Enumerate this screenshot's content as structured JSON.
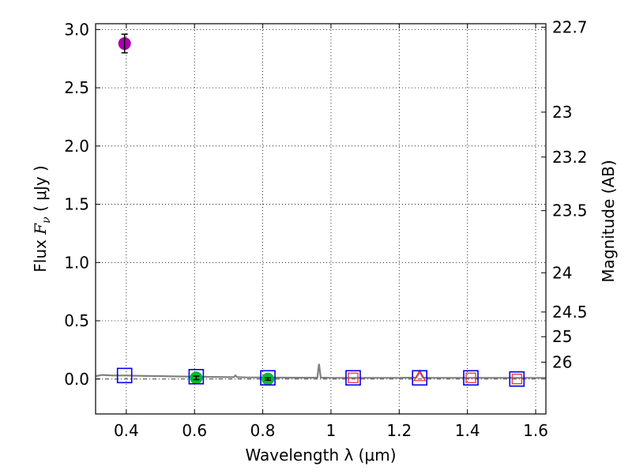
{
  "chart_data": {
    "type": "scatter",
    "xlabel": "Wavelength  λ (μm)",
    "ylabel_left_prefix": "Flux  ",
    "ylabel_left_var": "F",
    "ylabel_left_sub": "ν",
    "ylabel_left_suffix": "  ( μJy )",
    "ylabel_right": "Magnitude (AB)",
    "xlim": [
      0.31,
      1.63
    ],
    "ylim": [
      -0.3,
      3.05
    ],
    "x_ticks": [
      {
        "value": 0.4,
        "label": "0.4"
      },
      {
        "value": 0.6,
        "label": "0.6"
      },
      {
        "value": 0.8,
        "label": "0.8"
      },
      {
        "value": 1.0,
        "label": "1"
      },
      {
        "value": 1.2,
        "label": "1.2"
      },
      {
        "value": 1.4,
        "label": "1.4"
      },
      {
        "value": 1.6,
        "label": "1.6"
      }
    ],
    "y_ticks": [
      {
        "value": 0.0,
        "label": "0.0"
      },
      {
        "value": 0.5,
        "label": "0.5"
      },
      {
        "value": 1.0,
        "label": "1.0"
      },
      {
        "value": 1.5,
        "label": "1.5"
      },
      {
        "value": 2.0,
        "label": "2.0"
      },
      {
        "value": 2.5,
        "label": "2.5"
      },
      {
        "value": 3.0,
        "label": "3.0"
      }
    ],
    "right_ticks": [
      {
        "mag": 22.7,
        "label": "22.7"
      },
      {
        "mag": 23,
        "label": "23"
      },
      {
        "mag": 23.2,
        "label": "23.2"
      },
      {
        "mag": 23.5,
        "label": "23.5"
      },
      {
        "mag": 24,
        "label": "24"
      },
      {
        "mag": 24.5,
        "label": "24.5"
      },
      {
        "mag": 25,
        "label": "25"
      },
      {
        "mag": 26,
        "label": "26"
      }
    ],
    "grid": true,
    "model_spectrum": {
      "color": "#808080",
      "points": [
        [
          0.31,
          0.025
        ],
        [
          0.33,
          0.035
        ],
        [
          0.36,
          0.03
        ],
        [
          0.4,
          0.03
        ],
        [
          0.45,
          0.027
        ],
        [
          0.5,
          0.025
        ],
        [
          0.55,
          0.022
        ],
        [
          0.6,
          0.02
        ],
        [
          0.65,
          0.018
        ],
        [
          0.7,
          0.016
        ],
        [
          0.715,
          0.016
        ],
        [
          0.72,
          0.03
        ],
        [
          0.725,
          0.016
        ],
        [
          0.75,
          0.014
        ],
        [
          0.8,
          0.013
        ],
        [
          0.85,
          0.012
        ],
        [
          0.9,
          0.011
        ],
        [
          0.95,
          0.011
        ],
        [
          0.96,
          0.012
        ],
        [
          0.965,
          0.13
        ],
        [
          0.97,
          0.012
        ],
        [
          1.0,
          0.01
        ],
        [
          1.1,
          0.01
        ],
        [
          1.2,
          0.01
        ],
        [
          1.25,
          0.012
        ],
        [
          1.26,
          0.06
        ],
        [
          1.27,
          0.012
        ],
        [
          1.3,
          0.01
        ],
        [
          1.4,
          0.01
        ],
        [
          1.5,
          0.01
        ],
        [
          1.63,
          0.01
        ]
      ]
    },
    "zero_line_color": "#444444",
    "model_photometry": {
      "color": "#0000ee",
      "x": [
        0.395,
        0.605,
        0.815,
        1.065,
        1.26,
        1.41,
        1.545
      ],
      "y": [
        0.03,
        0.02,
        0.01,
        0.01,
        0.01,
        0.01,
        0.0
      ]
    },
    "observed_points": [
      {
        "x": 0.395,
        "y": 2.88,
        "yerr": 0.08,
        "color": "#aa00aa"
      },
      {
        "x": 0.605,
        "y": 0.01,
        "yerr": 0.015,
        "color": "#00bb33"
      },
      {
        "x": 0.815,
        "y": 0.0,
        "yerr": 0.01,
        "color": "#00bb33"
      }
    ],
    "upper_limits": {
      "color": "#ee2222",
      "squares": [
        {
          "x": 1.065,
          "y": 0.01
        },
        {
          "x": 1.41,
          "y": 0.01
        },
        {
          "x": 1.545,
          "y": 0.0
        }
      ],
      "triangles": [
        {
          "x": 1.26,
          "y": 0.02
        }
      ]
    }
  }
}
